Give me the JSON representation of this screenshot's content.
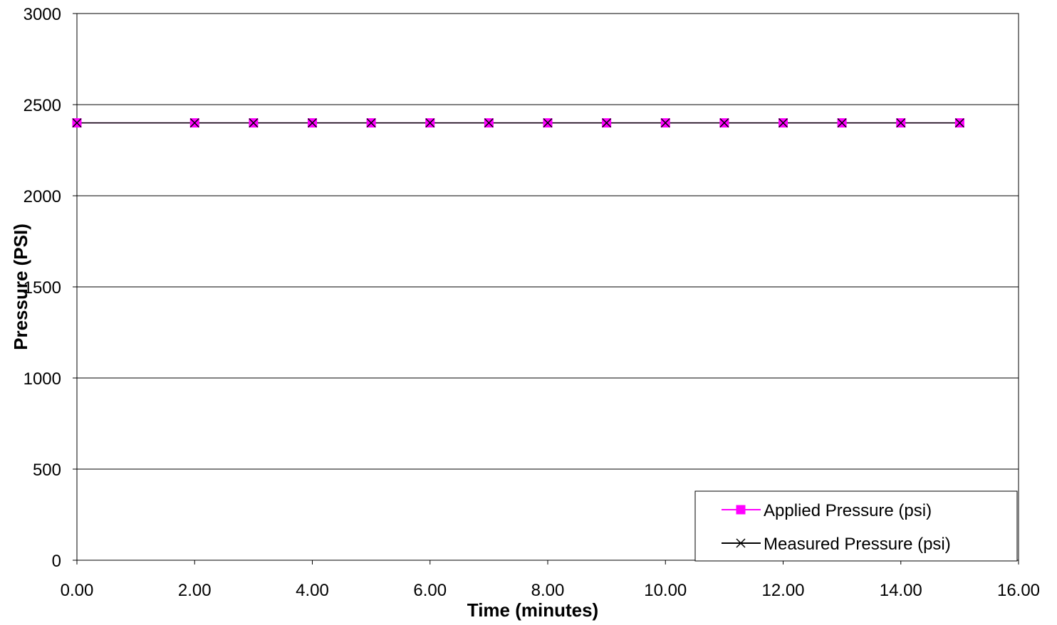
{
  "chart_data": {
    "type": "line",
    "title": "",
    "xlabel": "Time (minutes)",
    "ylabel": "Pressure (PSI)",
    "xlim": [
      0,
      16
    ],
    "ylim": [
      0,
      3000
    ],
    "x_ticks": [
      0,
      2,
      4,
      6,
      8,
      10,
      12,
      14,
      16
    ],
    "x_tick_labels": [
      "0.00",
      "2.00",
      "4.00",
      "6.00",
      "8.00",
      "10.00",
      "12.00",
      "14.00",
      "16.00"
    ],
    "y_ticks": [
      0,
      500,
      1000,
      1500,
      2000,
      2500,
      3000
    ],
    "y_tick_labels": [
      "0",
      "500",
      "1000",
      "1500",
      "2000",
      "2500",
      "3000"
    ],
    "grid": "horizontal",
    "legend_position": "bottom-right",
    "x": [
      0,
      2,
      3,
      4,
      5,
      6,
      7,
      8,
      9,
      10,
      11,
      12,
      13,
      14,
      15
    ],
    "series": [
      {
        "name": "Applied Pressure (psi)",
        "color": "#ff00ff",
        "marker": "square",
        "values": [
          2400,
          2400,
          2400,
          2400,
          2400,
          2400,
          2400,
          2400,
          2400,
          2400,
          2400,
          2400,
          2400,
          2400,
          2400
        ]
      },
      {
        "name": "Measured Pressure (psi)",
        "color": "#000000",
        "marker": "x",
        "values": [
          2400,
          2400,
          2400,
          2400,
          2400,
          2400,
          2400,
          2400,
          2400,
          2400,
          2400,
          2400,
          2400,
          2400,
          2400
        ]
      }
    ]
  }
}
